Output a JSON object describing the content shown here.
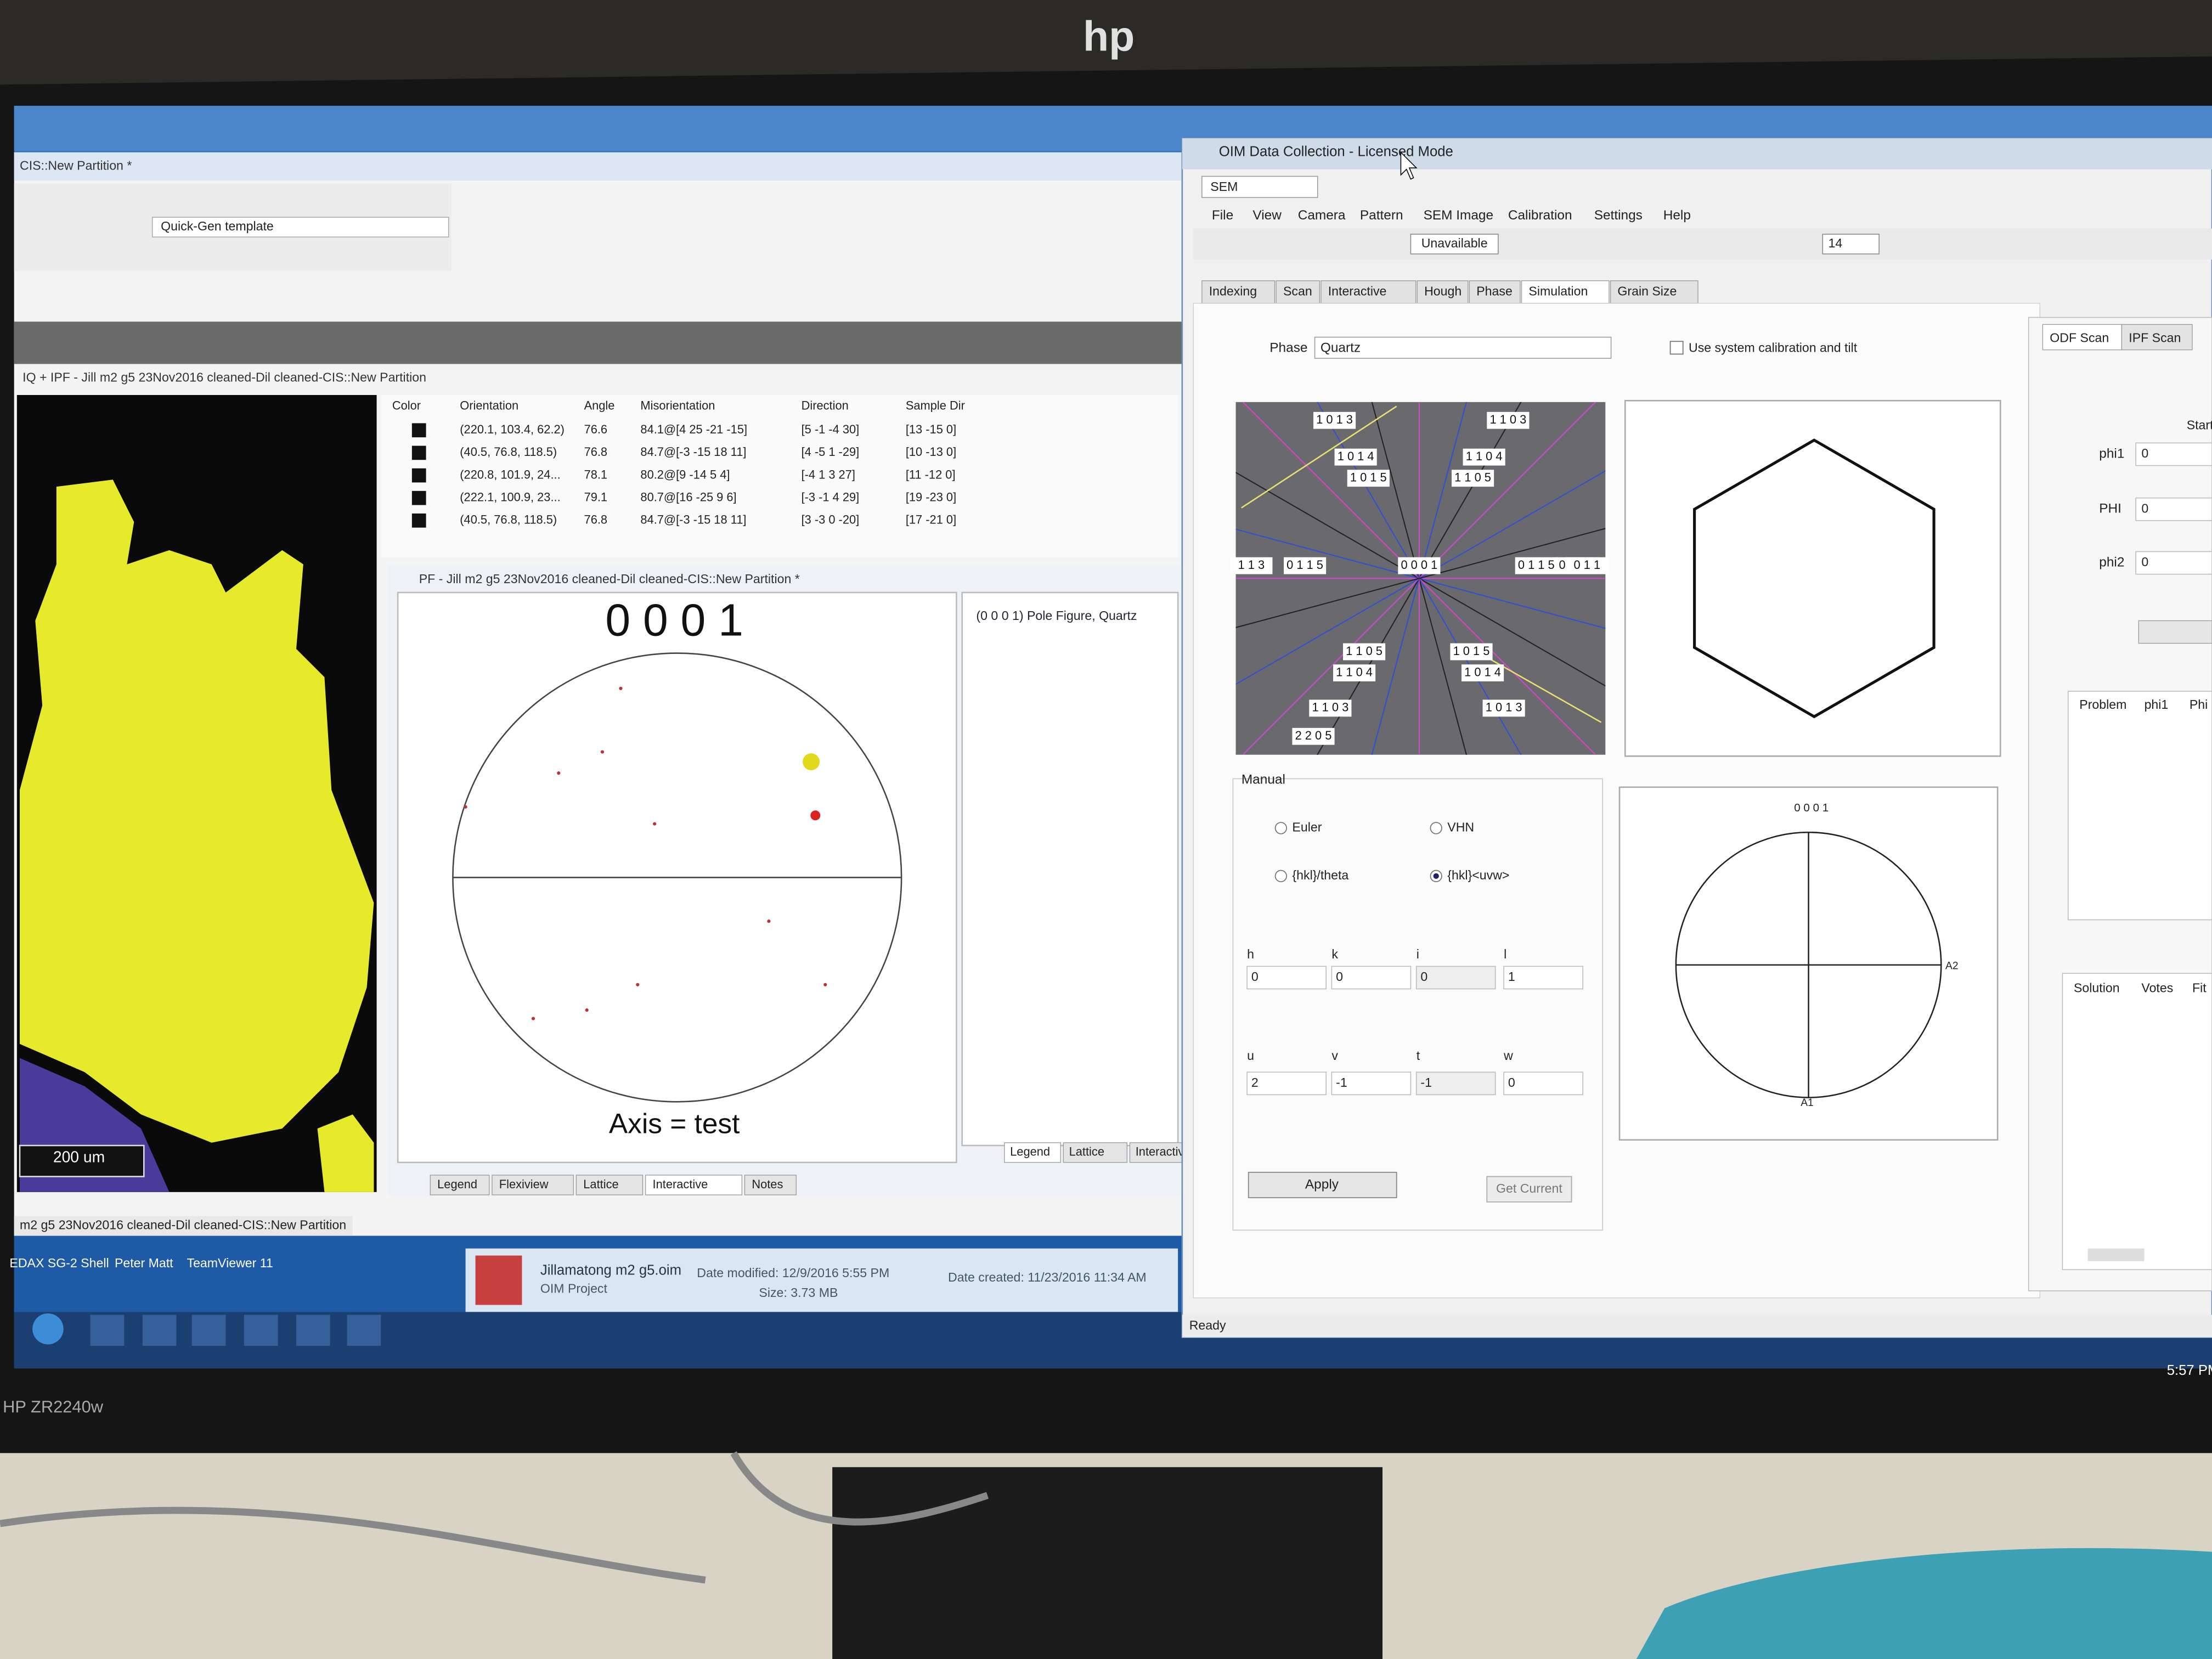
{
  "monitor": {
    "brand": "hp",
    "model": "HP ZR2240w"
  },
  "left_window": {
    "title": "CIS::New Partition *",
    "template": "Quick-Gen template",
    "map_title": "IQ + IPF - Jill m2 g5 23Nov2016 cleaned-Dil cleaned-CIS::New Partition",
    "scale_bar": "200 um",
    "table": {
      "headers": [
        "Color",
        "Orientation",
        "Angle",
        "Misorientation",
        "Direction",
        "Sample Dir"
      ],
      "rows": [
        [
          "(220.1, 103.4, 62.2)",
          "76.6",
          "84.1@[4 25 -21 -15]",
          "[5 -1 -4 30]",
          "[13 -15 0]"
        ],
        [
          "(40.5, 76.8, 118.5)",
          "76.8",
          "84.7@[-3 -15 18 11]",
          "[4 -5 1 -29]",
          "[10 -13 0]"
        ],
        [
          "(220.8, 101.9, 24...",
          "78.1",
          "80.2@[9 -14 5 4]",
          "[-4 1 3 27]",
          "[11 -12 0]"
        ],
        [
          "(222.1, 100.9, 23...",
          "79.1",
          "80.7@[16 -25 9 6]",
          "[-3 -1 4 29]",
          "[19 -23 0]"
        ],
        [
          "(40.5, 76.8, 118.5)",
          "76.8",
          "84.7@[-3 -15 18 11]",
          "[3 -3 0 -20]",
          "[17 -21 0]"
        ]
      ]
    },
    "pf_title": "PF - Jill m2 g5 23Nov2016 cleaned-Dil cleaned-CIS::New Partition *",
    "pf_heading": "0 0 0 1",
    "pf_caption": "Axis = test",
    "pf_legend": "(0 0 0 1) Pole Figure, Quartz",
    "pf_tabs": [
      "Legend",
      "Flexiview",
      "Lattice",
      "Interactive",
      "Notes"
    ],
    "legend_tabs": [
      "Legend",
      "Lattice",
      "Interactiv"
    ],
    "status": "m2 g5 23Nov2016 cleaned-Dil cleaned-CIS::New Partition"
  },
  "desktop": {
    "icons": [
      "EDAX SG-2 Shell",
      "Peter Matt",
      "TeamViewer 11"
    ],
    "file": {
      "name": "Jillamatong m2 g5.oim",
      "type": "OIM Project",
      "modified": "Date modified: 12/9/2016 5:55 PM",
      "size": "Size: 3.73 MB",
      "created": "Date created: 11/23/2016 11:34 AM"
    }
  },
  "oim_window": {
    "title": "OIM Data Collection - Licensed Mode",
    "mode": "SEM",
    "menu": [
      "File",
      "View",
      "Camera",
      "Pattern",
      "SEM Image",
      "Calibration",
      "Settings",
      "Help"
    ],
    "toolbar_status": "Unavailable",
    "toolbar_value": "14",
    "tabs": [
      "Indexing",
      "Scan",
      "Interactive",
      "Hough",
      "Phase",
      "Simulation",
      "Grain Size"
    ],
    "phase_label": "Phase",
    "phase": "Quartz",
    "calibration": "Use system calibration and tilt",
    "pattern_labels": [
      "1 0 1 3",
      "1 1 0 3",
      "1 0 1 4",
      "1 1 0 4",
      "1 0 1 5",
      "1 1 0 5",
      "0 0 0 1",
      "1 1 0 5",
      "1 0 1 5",
      "1 1 0 4",
      "1 0 1 4",
      "1 1 0 3",
      "1 0 1 3",
      "2 2 0 5",
      "1 1 3",
      "0 1 1 5",
      "0 1 1 5",
      "0 1 1 4",
      "0 1 1"
    ],
    "manual": {
      "title": "Manual",
      "options": [
        "Euler",
        "VHN",
        "{hkl}/theta",
        "{hkl}<uvw>"
      ],
      "hkl_labels": [
        "h",
        "k",
        "i",
        "l"
      ],
      "hkl_values": [
        "0",
        "0",
        "0",
        "1"
      ],
      "uvw_labels": [
        "u",
        "v",
        "t",
        "w"
      ],
      "uvw_values": [
        "2",
        "-1",
        "-1",
        "0"
      ],
      "apply": "Apply",
      "get_current": "Get Current"
    },
    "stereo": {
      "title": "0 0 0 1",
      "a2": "A2",
      "a1": "A1"
    },
    "right_tabs": [
      "ODF Scan",
      "IPF Scan"
    ],
    "start": "Start",
    "euler_labels": [
      "phi1",
      "PHI",
      "phi2"
    ],
    "euler_values": [
      "0",
      "0",
      "0"
    ],
    "problem_headers": [
      "Problem",
      "phi1",
      "Phi"
    ],
    "solution_headers": [
      "Solution",
      "Votes",
      "Fit"
    ],
    "status": "Ready"
  },
  "taskbar": {
    "time": "5:57 PM"
  }
}
